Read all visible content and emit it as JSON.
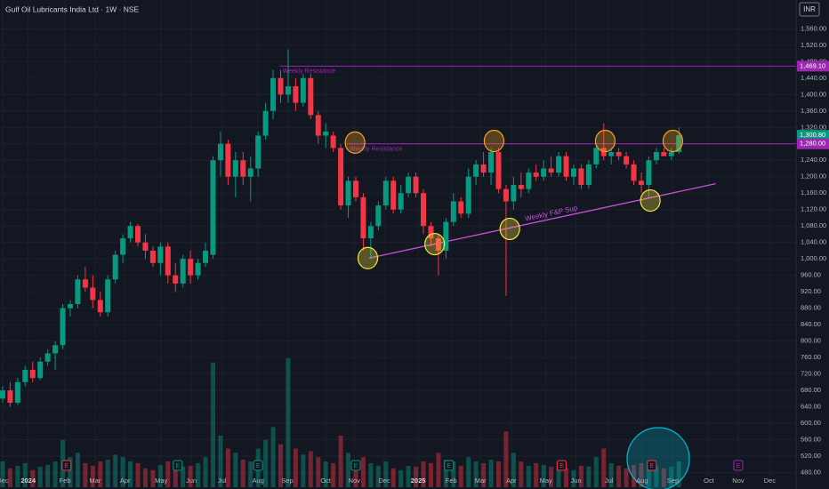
{
  "chart_data": {
    "type": "candlestick",
    "title": "Gulf Oil Lubricants India Ltd · 1W · NSE",
    "currency": "INR",
    "up_color": "#089981",
    "down_color": "#f23645",
    "grid": true,
    "xlim": [
      -0.35,
      105.6
    ],
    "ylim": [
      440,
      1630
    ],
    "volume_lim": [
      0,
      150
    ],
    "xticks": [
      {
        "value": 0,
        "label": "Dec"
      },
      {
        "value": 3.4,
        "label": "2024"
      },
      {
        "value": 8.3,
        "label": "Feb"
      },
      {
        "value": 12.3,
        "label": "Mar"
      },
      {
        "value": 16.3,
        "label": "Apr"
      },
      {
        "value": 21.1,
        "label": "May"
      },
      {
        "value": 25.1,
        "label": "Jun"
      },
      {
        "value": 29.2,
        "label": "Jul"
      },
      {
        "value": 34,
        "label": "Aug"
      },
      {
        "value": 37.9,
        "label": "Sep"
      },
      {
        "value": 43,
        "label": "Oct"
      },
      {
        "value": 46.8,
        "label": "Nov"
      },
      {
        "value": 50.8,
        "label": "Dec"
      },
      {
        "value": 55.3,
        "label": "2025"
      },
      {
        "value": 59.7,
        "label": "Feb"
      },
      {
        "value": 63.6,
        "label": "Mar"
      },
      {
        "value": 67.7,
        "label": "Apr"
      },
      {
        "value": 72.3,
        "label": "May"
      },
      {
        "value": 76.3,
        "label": "Jun"
      },
      {
        "value": 80.7,
        "label": "Jul"
      },
      {
        "value": 85.1,
        "label": "Aug"
      },
      {
        "value": 89.2,
        "label": "Sep"
      },
      {
        "value": 94,
        "label": "Oct"
      },
      {
        "value": 97.9,
        "label": "Nov"
      },
      {
        "value": 102.1,
        "label": "Dec"
      }
    ],
    "yticks": [
      {
        "value": 480,
        "label": "480.00"
      },
      {
        "value": 520,
        "label": "520.00"
      },
      {
        "value": 560,
        "label": "560.00"
      },
      {
        "value": 600,
        "label": "600.00"
      },
      {
        "value": 640,
        "label": "640.00"
      },
      {
        "value": 680,
        "label": "680.00"
      },
      {
        "value": 720,
        "label": "720.00"
      },
      {
        "value": 760,
        "label": "760.00"
      },
      {
        "value": 800,
        "label": "800.00"
      },
      {
        "value": 840,
        "label": "840.00"
      },
      {
        "value": 880,
        "label": "880.00"
      },
      {
        "value": 920,
        "label": "920.00"
      },
      {
        "value": 960,
        "label": "960.00"
      },
      {
        "value": 1000,
        "label": "1,000.00"
      },
      {
        "value": 1040,
        "label": "1,040.00"
      },
      {
        "value": 1080,
        "label": "1,080.00"
      },
      {
        "value": 1120,
        "label": "1,120.00"
      },
      {
        "value": 1160,
        "label": "1,160.00"
      },
      {
        "value": 1200,
        "label": "1,200.00"
      },
      {
        "value": 1240,
        "label": "1,240.00"
      },
      {
        "value": 1280,
        "label": "1,280.00"
      },
      {
        "value": 1320,
        "label": "1,320.00"
      },
      {
        "value": 1360,
        "label": "1,360.00"
      },
      {
        "value": 1400,
        "label": "1,400.00"
      },
      {
        "value": 1440,
        "label": "1,440.00"
      },
      {
        "value": 1480,
        "label": "1,480.00"
      },
      {
        "value": 1520,
        "label": "1,520.00"
      },
      {
        "value": 1560,
        "label": "1,560.00"
      }
    ],
    "open": [
      660,
      680,
      650,
      700,
      730,
      710,
      750,
      770,
      790,
      880,
      890,
      950,
      930,
      900,
      870,
      950,
      1010,
      1050,
      1080,
      1040,
      1020,
      990,
      1030,
      960,
      940,
      1000,
      960,
      990,
      1010,
      1240,
      1280,
      1200,
      1240,
      1200,
      1220,
      1300,
      1360,
      1440,
      1400,
      1420,
      1380,
      1440,
      1350,
      1300,
      1300,
      1270,
      1130,
      1190,
      1150,
      1050,
      1080,
      1130,
      1190,
      1120,
      1160,
      1200,
      1160,
      1080,
      1050,
      1020,
      1090,
      1140,
      1110,
      1200,
      1230,
      1210,
      1260,
      1170,
      1140,
      1180,
      1170,
      1210,
      1200,
      1220,
      1210,
      1250,
      1200,
      1220,
      1180,
      1230,
      1270,
      1250,
      1260,
      1250,
      1230,
      1190,
      1180,
      1240,
      1260,
      1250,
      1260
    ],
    "high": [
      690,
      700,
      710,
      740,
      750,
      760,
      780,
      800,
      890,
      900,
      960,
      980,
      960,
      920,
      960,
      1020,
      1060,
      1090,
      1085,
      1060,
      1030,
      1040,
      1040,
      990,
      1010,
      1020,
      1000,
      1040,
      1250,
      1310,
      1290,
      1260,
      1260,
      1250,
      1310,
      1380,
      1460,
      1460,
      1510,
      1440,
      1450,
      1450,
      1360,
      1330,
      1310,
      1280,
      1200,
      1200,
      1160,
      1090,
      1140,
      1200,
      1200,
      1180,
      1210,
      1210,
      1170,
      1090,
      1060,
      1100,
      1160,
      1150,
      1220,
      1240,
      1260,
      1270,
      1270,
      1180,
      1200,
      1210,
      1220,
      1230,
      1240,
      1250,
      1260,
      1260,
      1230,
      1230,
      1240,
      1280,
      1330,
      1270,
      1270,
      1260,
      1240,
      1210,
      1250,
      1270,
      1270,
      1270,
      1320
    ],
    "low": [
      650,
      640,
      645,
      690,
      700,
      705,
      740,
      730,
      780,
      860,
      880,
      920,
      880,
      860,
      860,
      940,
      990,
      1040,
      1030,
      1000,
      980,
      960,
      940,
      920,
      930,
      940,
      950,
      980,
      1000,
      1200,
      1180,
      1150,
      1180,
      1140,
      1200,
      1290,
      1340,
      1380,
      1380,
      1360,
      1370,
      1340,
      1280,
      1270,
      1260,
      1120,
      1100,
      1140,
      1020,
      1000,
      1070,
      1120,
      1110,
      1110,
      1150,
      1150,
      1060,
      1030,
      960,
      1000,
      1080,
      1100,
      1100,
      1180,
      1200,
      1180,
      1160,
      910,
      1120,
      1150,
      1160,
      1190,
      1190,
      1200,
      1200,
      1190,
      1180,
      1170,
      1170,
      1220,
      1240,
      1230,
      1240,
      1220,
      1180,
      1160,
      1150,
      1230,
      1250,
      1240,
      1255
    ],
    "close": [
      680,
      650,
      700,
      730,
      710,
      750,
      770,
      790,
      880,
      890,
      950,
      930,
      900,
      870,
      950,
      1010,
      1050,
      1080,
      1040,
      1020,
      990,
      1030,
      960,
      940,
      1000,
      960,
      990,
      1020,
      1240,
      1280,
      1200,
      1240,
      1200,
      1220,
      1300,
      1360,
      1440,
      1400,
      1420,
      1380,
      1440,
      1350,
      1300,
      1310,
      1270,
      1130,
      1190,
      1150,
      1050,
      1080,
      1130,
      1190,
      1120,
      1160,
      1200,
      1160,
      1080,
      1050,
      1020,
      1090,
      1140,
      1110,
      1200,
      1230,
      1210,
      1260,
      1170,
      1140,
      1180,
      1170,
      1210,
      1200,
      1220,
      1210,
      1250,
      1200,
      1220,
      1180,
      1230,
      1270,
      1250,
      1260,
      1250,
      1230,
      1190,
      1180,
      1240,
      1260,
      1250,
      1260,
      1300.8
    ],
    "volume": [
      30,
      22,
      25,
      28,
      20,
      24,
      26,
      30,
      55,
      35,
      40,
      28,
      25,
      30,
      32,
      38,
      35,
      30,
      28,
      22,
      20,
      26,
      30,
      22,
      24,
      25,
      28,
      35,
      145,
      60,
      45,
      40,
      32,
      30,
      45,
      55,
      70,
      50,
      150,
      45,
      38,
      42,
      35,
      30,
      28,
      60,
      40,
      30,
      35,
      28,
      25,
      30,
      22,
      20,
      25,
      24,
      30,
      28,
      40,
      32,
      30,
      25,
      35,
      30,
      28,
      32,
      30,
      65,
      40,
      30,
      25,
      28,
      26,
      24,
      30,
      22,
      20,
      25,
      24,
      35,
      45,
      28,
      25,
      22,
      26,
      28,
      30,
      25,
      22,
      24,
      30
    ],
    "levels": [
      {
        "value": 1469.1,
        "from": 36.9,
        "label": "Weekly Resistance",
        "color": "#9c27b0"
      },
      {
        "value": 1280,
        "from": 45.8,
        "label": "Weekly Resistance",
        "color": "#9c27b0"
      }
    ],
    "trendline": {
      "label": "Weekly F&P Sup",
      "color": "#c850d8",
      "x": [
        48.8,
        94.9
      ],
      "y": [
        1002,
        1183
      ]
    },
    "price_labels": [
      {
        "value": 1469.1,
        "label": "1,469.10",
        "color": "#9c27b0"
      },
      {
        "value": 1300.8,
        "label": "1,300.80",
        "color": "#089981"
      },
      {
        "value": 1280,
        "label": "1,280.00",
        "color": "#9c27b0"
      }
    ],
    "markers": [
      {
        "x": 46.9,
        "y": 1283,
        "color": "#f7a21b"
      },
      {
        "x": 65.4,
        "y": 1287,
        "color": "#f7a21b"
      },
      {
        "x": 80.2,
        "y": 1287,
        "color": "#f7a21b"
      },
      {
        "x": 89.2,
        "y": 1287,
        "color": "#f7a21b"
      },
      {
        "x": 48.6,
        "y": 1002,
        "color": "#f5e63a"
      },
      {
        "x": 57.5,
        "y": 1036,
        "color": "#f5e63a"
      },
      {
        "x": 67.5,
        "y": 1073,
        "color": "#f5e63a"
      },
      {
        "x": 86.2,
        "y": 1142,
        "color": "#f5e63a"
      }
    ],
    "events": [
      {
        "x": 8.5,
        "label": "E",
        "color": "#f23645"
      },
      {
        "x": 23.3,
        "label": "E",
        "color": "#089981"
      },
      {
        "x": 34,
        "label": "E",
        "color": "#089981"
      },
      {
        "x": 47,
        "label": "E",
        "color": "#089981"
      },
      {
        "x": 59.4,
        "label": "E",
        "color": "#089981"
      },
      {
        "x": 74.4,
        "label": "E",
        "color": "#f23645"
      },
      {
        "x": 86.4,
        "label": "E",
        "color": "#f23645"
      },
      {
        "x": 97.9,
        "label": "E",
        "color": "#9c27b0"
      }
    ]
  }
}
